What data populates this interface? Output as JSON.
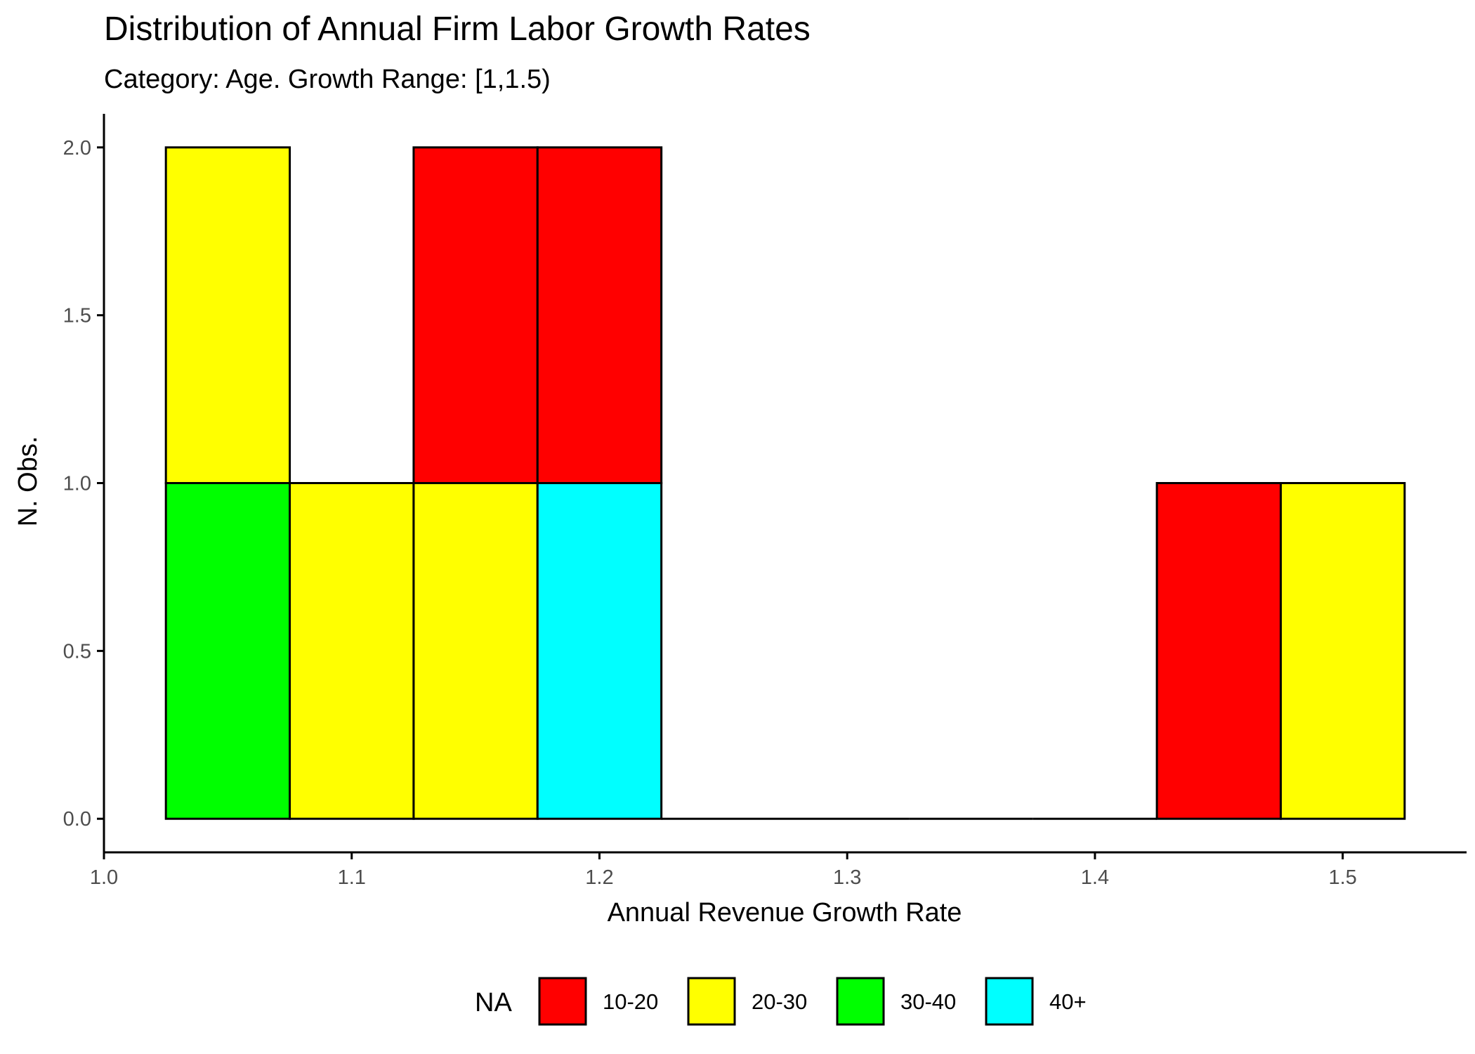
{
  "chart_data": {
    "type": "bar",
    "title": "Distribution of Annual Firm Labor Growth Rates",
    "subtitle": "Category: Age. Growth Range: [1,1.5)",
    "xlabel": "Annual Revenue Growth Rate",
    "ylabel": "N. Obs.",
    "xlim": [
      1.0,
      1.55
    ],
    "ylim": [
      -0.1,
      2.1
    ],
    "x_ticks": [
      "1.0",
      "1.1",
      "1.2",
      "1.3",
      "1.4",
      "1.5"
    ],
    "y_ticks": [
      "0.0",
      "0.5",
      "1.0",
      "1.5",
      "2.0"
    ],
    "bin_width": 0.05,
    "bin_centers": [
      1.05,
      1.1,
      1.15,
      1.2,
      1.25,
      1.3,
      1.35,
      1.4,
      1.45,
      1.5
    ],
    "stacking_order_top_to_bottom": [
      "10-20",
      "20-30",
      "30-40",
      "40+"
    ],
    "series": [
      {
        "name": "10-20",
        "color": "#FF0000",
        "values": [
          0,
          0,
          1,
          1,
          0,
          0,
          0,
          0,
          1,
          0
        ]
      },
      {
        "name": "20-30",
        "color": "#FFFF00",
        "values": [
          1,
          1,
          1,
          0,
          0,
          0,
          0,
          0,
          0,
          1
        ]
      },
      {
        "name": "30-40",
        "color": "#00FF00",
        "values": [
          1,
          0,
          0,
          0,
          0,
          0,
          0,
          0,
          0,
          0
        ]
      },
      {
        "name": "40+",
        "color": "#00FFFF",
        "values": [
          0,
          0,
          0,
          1,
          0,
          0,
          0,
          0,
          0,
          0
        ]
      }
    ],
    "legend": {
      "title": "NA",
      "placement": "bottom",
      "entries": [
        "10-20",
        "20-30",
        "30-40",
        "40+"
      ]
    },
    "grid": false
  }
}
